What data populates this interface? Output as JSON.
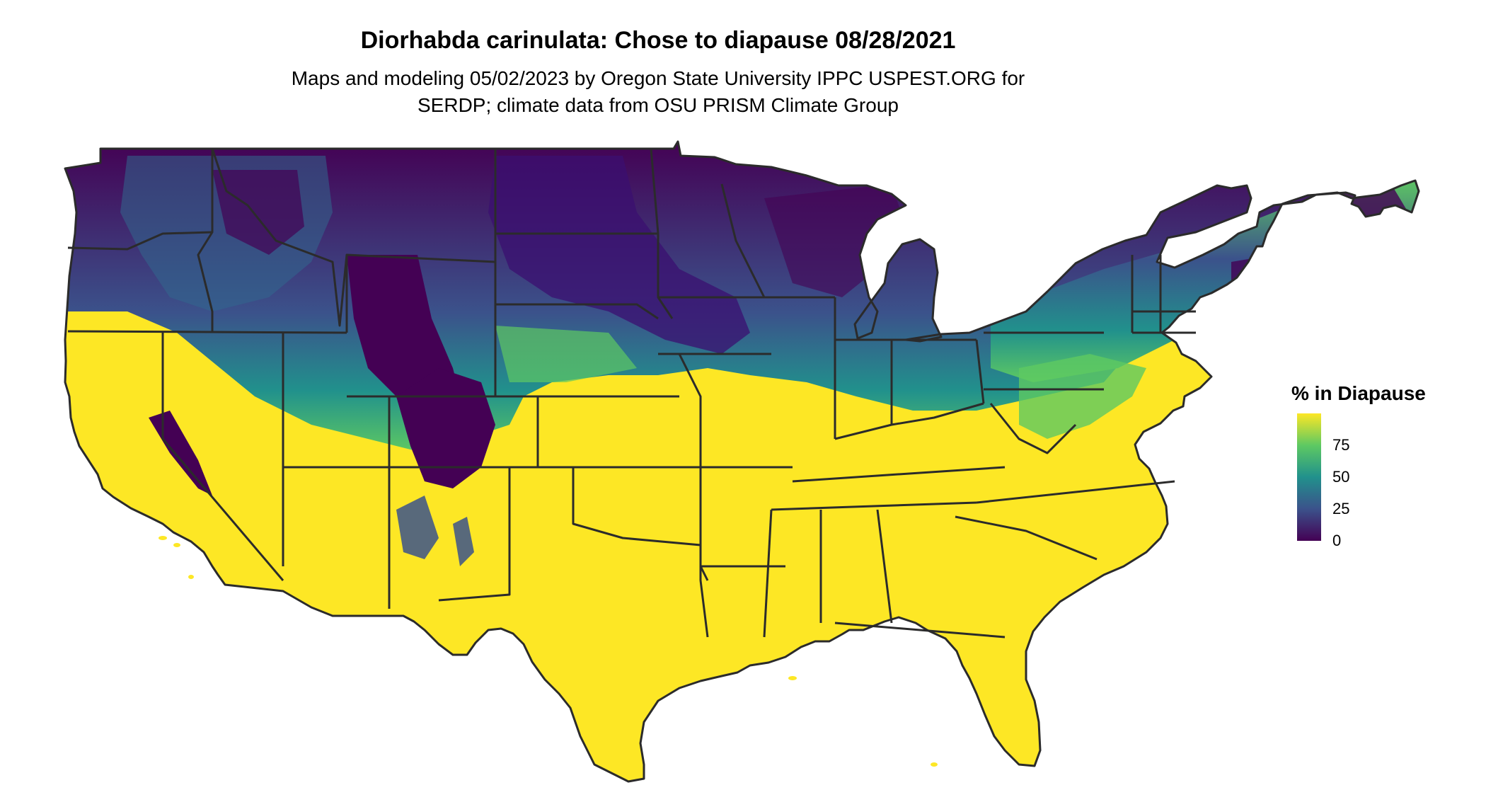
{
  "title": "Diorhabda carinulata: Chose to diapause 08/28/2021",
  "subtitle_line1": "Maps and modeling 05/02/2023 by Oregon State University IPPC USPEST.ORG for",
  "subtitle_line2": "SERDP; climate data from OSU PRISM Climate Group",
  "legend": {
    "title": "% in Diapause",
    "ticks": [
      {
        "label": "75",
        "value": 75
      },
      {
        "label": "50",
        "value": 50
      },
      {
        "label": "25",
        "value": 25
      },
      {
        "label": "0",
        "value": 0
      }
    ],
    "range": [
      0,
      100
    ],
    "colors": [
      "#440154",
      "#3b528b",
      "#21918c",
      "#5ec962",
      "#fde725"
    ]
  },
  "map": {
    "region": "Contiguous United States",
    "high_color": "#fde725",
    "low_color": "#440154",
    "mid_color": "#21918c",
    "border_color": "#2b2b2b"
  }
}
